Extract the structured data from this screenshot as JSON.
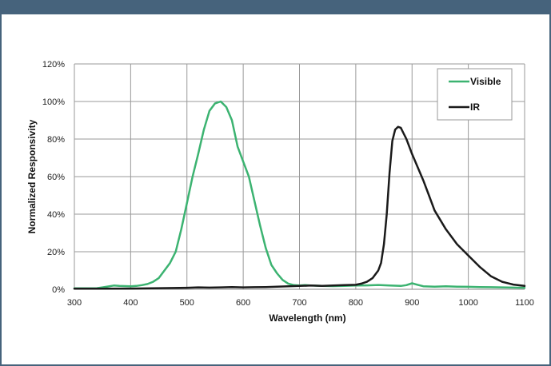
{
  "chart_data": {
    "type": "line",
    "title": "",
    "xlabel": "Wavelength (nm)",
    "ylabel": "Normalized Responsivity",
    "xlim": [
      300,
      1100
    ],
    "ylim": [
      0,
      120
    ],
    "xticks": [
      300,
      400,
      500,
      600,
      700,
      800,
      900,
      1000,
      1100
    ],
    "yticks": [
      0,
      20,
      40,
      60,
      80,
      100,
      120
    ],
    "ytick_suffix": "%",
    "grid": true,
    "legend_position": "top-right",
    "series": [
      {
        "name": "Visible",
        "color": "#3cb371",
        "x": [
          300,
          340,
          350,
          360,
          370,
          380,
          400,
          410,
          420,
          430,
          440,
          450,
          460,
          470,
          480,
          490,
          500,
          510,
          520,
          530,
          540,
          550,
          560,
          570,
          580,
          590,
          600,
          610,
          620,
          630,
          640,
          650,
          660,
          670,
          680,
          690,
          700,
          710,
          720,
          740,
          760,
          780,
          800,
          820,
          840,
          860,
          880,
          890,
          900,
          910,
          920,
          940,
          960,
          980,
          1000,
          1020,
          1040,
          1060,
          1080,
          1100
        ],
        "y": [
          0.5,
          0.6,
          1.0,
          1.5,
          2.0,
          1.8,
          1.6,
          1.8,
          2.2,
          2.8,
          4.0,
          6.0,
          10.0,
          14.0,
          20.0,
          32.0,
          46.0,
          60.0,
          72.0,
          85.0,
          95.0,
          99.0,
          100.0,
          97.0,
          90.0,
          76.0,
          68.0,
          60.0,
          47.0,
          34.0,
          22.0,
          13.0,
          8.5,
          5.0,
          3.0,
          2.2,
          2.0,
          2.2,
          2.0,
          1.8,
          1.7,
          1.8,
          2.0,
          2.1,
          2.3,
          2.0,
          1.8,
          2.2,
          3.2,
          2.4,
          1.6,
          1.4,
          1.6,
          1.4,
          1.3,
          1.2,
          1.1,
          1.0,
          0.9,
          0.8
        ]
      },
      {
        "name": "IR",
        "color": "#1a1a1a",
        "x": [
          300,
          350,
          400,
          450,
          500,
          520,
          540,
          560,
          580,
          600,
          620,
          640,
          660,
          680,
          700,
          720,
          740,
          760,
          780,
          800,
          810,
          820,
          830,
          840,
          845,
          850,
          855,
          860,
          865,
          870,
          875,
          880,
          885,
          890,
          900,
          910,
          920,
          930,
          940,
          960,
          980,
          1000,
          1020,
          1040,
          1060,
          1080,
          1100
        ],
        "y": [
          0.3,
          0.3,
          0.4,
          0.6,
          0.8,
          1.0,
          0.9,
          1.0,
          1.2,
          1.0,
          1.1,
          1.2,
          1.4,
          1.6,
          1.8,
          2.0,
          1.8,
          2.0,
          2.2,
          2.4,
          3.0,
          4.0,
          6.0,
          10.0,
          14.0,
          24.0,
          40.0,
          62.0,
          79.0,
          85.0,
          86.5,
          86.0,
          83.0,
          80.0,
          72.0,
          65.0,
          58.0,
          50.0,
          42.0,
          32.0,
          24.0,
          18.0,
          12.0,
          7.0,
          4.0,
          2.5,
          1.8
        ]
      }
    ]
  }
}
